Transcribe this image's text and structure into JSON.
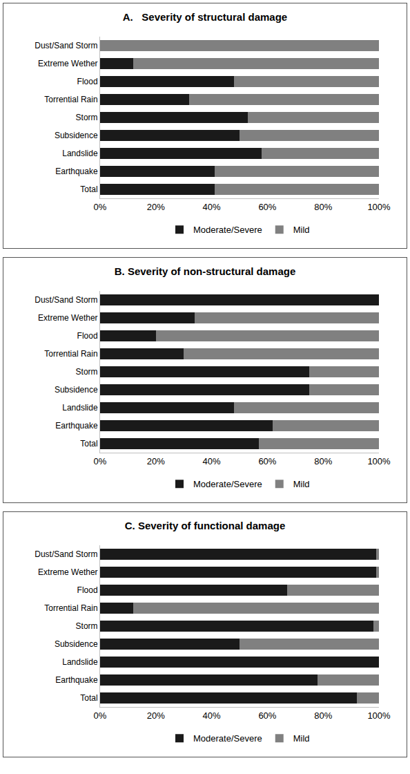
{
  "chart_data": [
    {
      "type": "bar",
      "title": "A.   Severity of structural damage",
      "orientation": "horizontal",
      "stacked": true,
      "legend": "bottom",
      "grid": false,
      "categories": [
        "Dust/Sand Storm",
        "Extreme Wether",
        "Flood",
        "Torrential Rain",
        "Storm",
        "Subsidence",
        "Landslide",
        "Earthquake",
        "Total"
      ],
      "series": [
        {
          "name": "Moderate/Severe",
          "color": "#1a1a1a",
          "values": [
            0,
            12,
            48,
            32,
            53,
            50,
            58,
            41,
            41
          ]
        },
        {
          "name": "Mild",
          "color": "#808080",
          "values": [
            100,
            88,
            52,
            68,
            47,
            50,
            42,
            59,
            59
          ]
        }
      ],
      "xlim": [
        0,
        100
      ],
      "xticks": [
        {
          "value": 0,
          "label": "0%"
        },
        {
          "value": 20,
          "label": "20%"
        },
        {
          "value": 40,
          "label": "40%"
        },
        {
          "value": 60,
          "label": "60%"
        },
        {
          "value": 80,
          "label": "80%"
        },
        {
          "value": 100,
          "label": "100%"
        }
      ]
    },
    {
      "type": "bar",
      "title": "B. Severity of non-structural damage",
      "orientation": "horizontal",
      "stacked": true,
      "legend": "bottom",
      "grid": false,
      "categories": [
        "Dust/Sand Storm",
        "Extreme Wether",
        "Flood",
        "Torrential Rain",
        "Storm",
        "Subsidence",
        "Landslide",
        "Earthquake",
        "Total"
      ],
      "series": [
        {
          "name": "Moderate/Severe",
          "color": "#1a1a1a",
          "values": [
            100,
            34,
            20,
            30,
            75,
            75,
            48,
            62,
            57
          ]
        },
        {
          "name": "Mild",
          "color": "#808080",
          "values": [
            0,
            66,
            80,
            70,
            25,
            25,
            52,
            38,
            43
          ]
        }
      ],
      "xlim": [
        0,
        100
      ],
      "xticks": [
        {
          "value": 0,
          "label": "0%"
        },
        {
          "value": 20,
          "label": "20%"
        },
        {
          "value": 40,
          "label": "40%"
        },
        {
          "value": 60,
          "label": "60%"
        },
        {
          "value": 80,
          "label": "80%"
        },
        {
          "value": 100,
          "label": "100%"
        }
      ]
    },
    {
      "type": "bar",
      "title": "C. Severity of functional damage",
      "orientation": "horizontal",
      "stacked": true,
      "legend": "bottom",
      "grid": false,
      "categories": [
        "Dust/Sand Storm",
        "Extreme Wether",
        "Flood",
        "Torrential Rain",
        "Storm",
        "Subsidence",
        "Landslide",
        "Earthquake",
        "Total"
      ],
      "series": [
        {
          "name": "Moderate/Severe",
          "color": "#1a1a1a",
          "values": [
            99,
            99,
            67,
            12,
            98,
            50,
            100,
            78,
            92
          ]
        },
        {
          "name": "Mild",
          "color": "#808080",
          "values": [
            1,
            1,
            33,
            88,
            2,
            50,
            0,
            22,
            8
          ]
        }
      ],
      "xlim": [
        0,
        100
      ],
      "xticks": [
        {
          "value": 0,
          "label": "0%"
        },
        {
          "value": 20,
          "label": "20%"
        },
        {
          "value": 40,
          "label": "40%"
        },
        {
          "value": 60,
          "label": "60%"
        },
        {
          "value": 80,
          "label": "80%"
        },
        {
          "value": 100,
          "label": "100%"
        }
      ]
    }
  ]
}
